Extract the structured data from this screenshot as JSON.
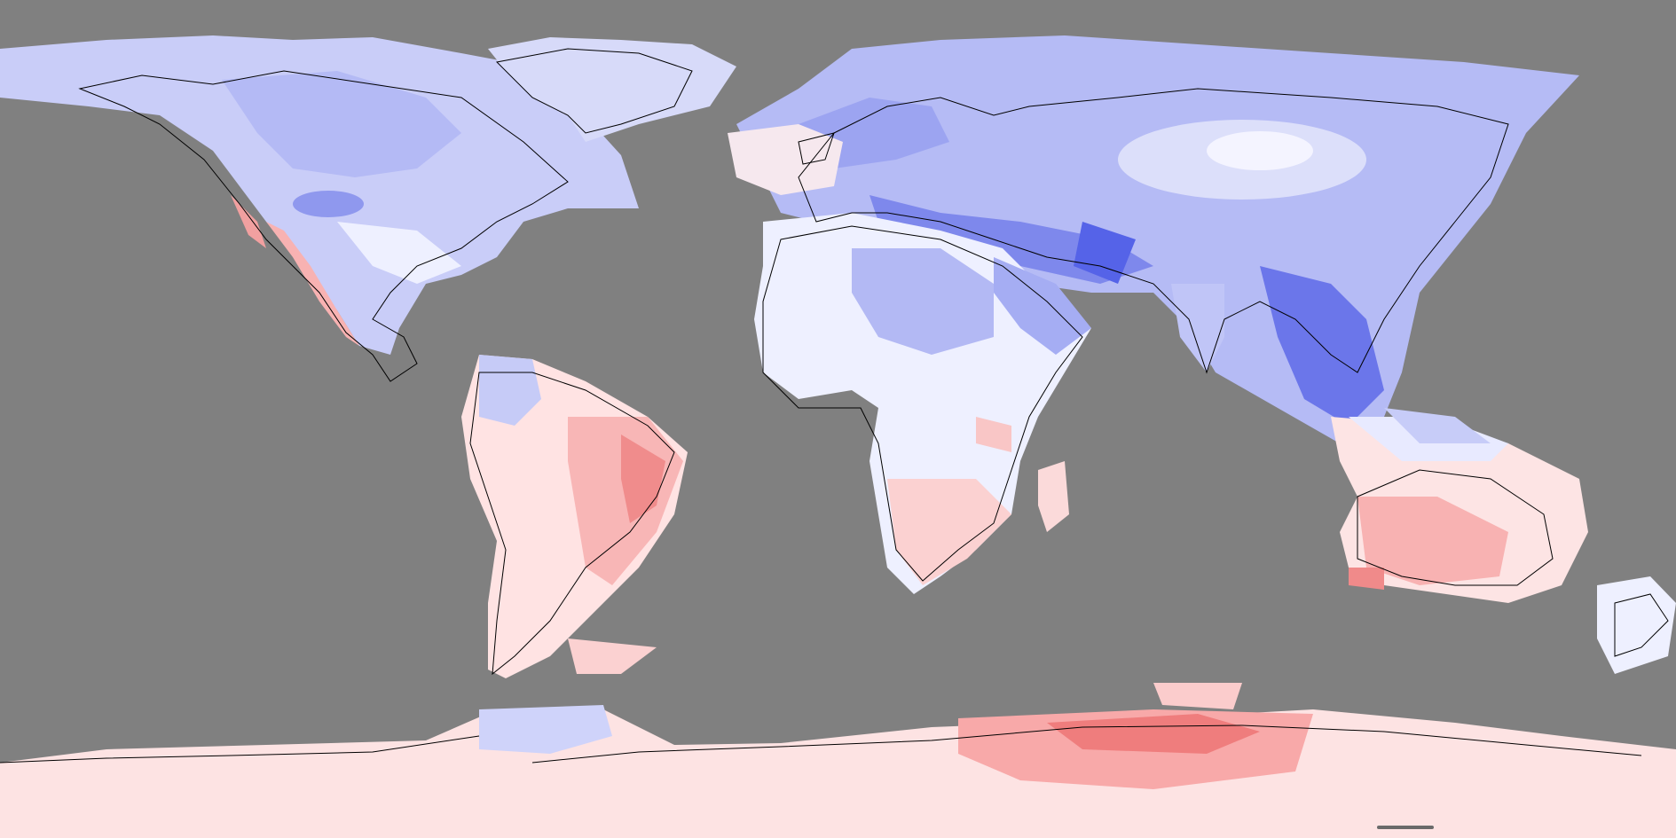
{
  "map": {
    "projection": "equirectangular",
    "ocean_color": "#808080",
    "palette": {
      "cold_strong": "#5563e8",
      "cold": "#9aa3f2",
      "cold_light": "#cfd3fa",
      "neutral": "#f4f4ff",
      "warm_light": "#ffdede",
      "warm": "#f8a8a8",
      "warm_strong": "#ee6a6a",
      "coastline": "#000000"
    }
  }
}
